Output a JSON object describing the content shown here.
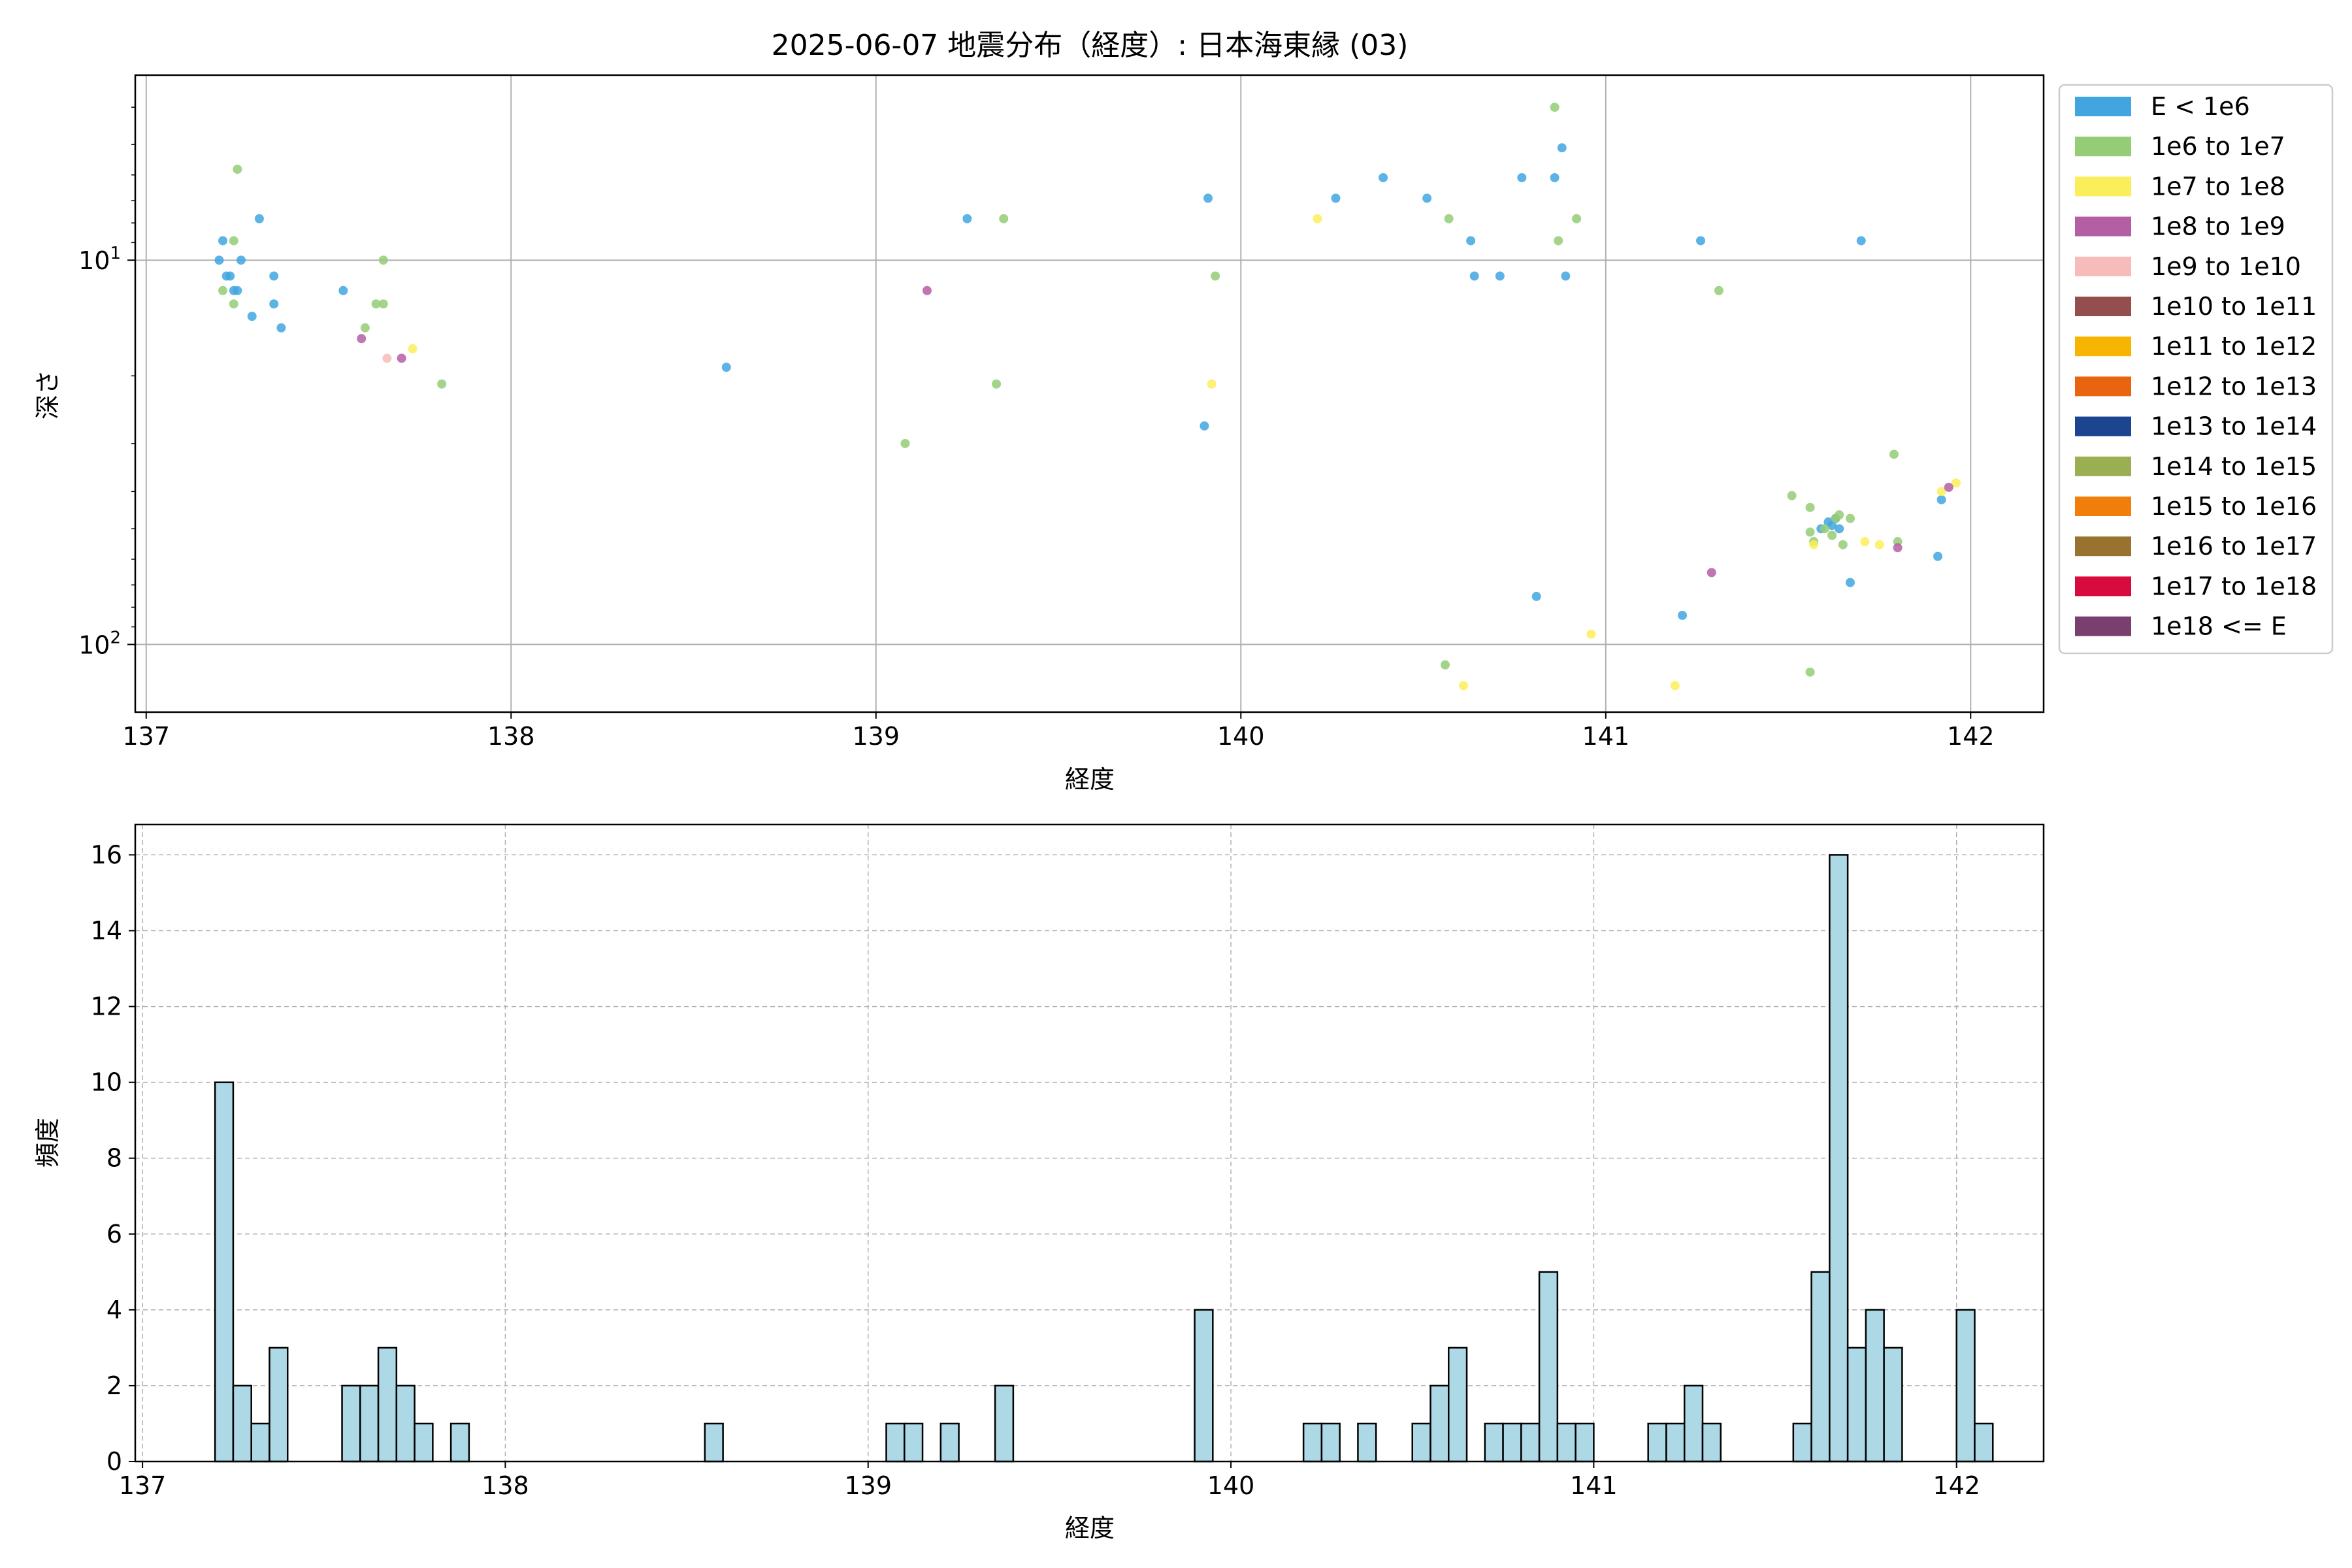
{
  "title": "2025-06-07 地震分布（経度）: 日本海東縁 (03)",
  "chart_data": [
    {
      "type": "scatter",
      "xlabel": "経度",
      "ylabel": "深さ",
      "xlim": [
        136.97,
        142.2
      ],
      "ylim": [
        150,
        3.3
      ],
      "yscale": "log",
      "y_inverted": true,
      "xticks": [
        137,
        138,
        139,
        140,
        141,
        142
      ],
      "yticks": [
        {
          "value": 10,
          "base": "10",
          "exp": "1"
        },
        {
          "value": 100,
          "base": "10",
          "exp": "2"
        }
      ],
      "grid": true,
      "legend_placement": "outside-right",
      "legend": [
        {
          "label": "E < 1e6",
          "color": "#41a6e0"
        },
        {
          "label": "1e6 to 1e7",
          "color": "#94cd76"
        },
        {
          "label": "1e7 to 1e8",
          "color": "#fbee5b"
        },
        {
          "label": "1e8 to 1e9",
          "color": "#b45ea4"
        },
        {
          "label": "1e9 to 1e10",
          "color": "#f6bcb9"
        },
        {
          "label": "1e10 to 1e11",
          "color": "#954e4e"
        },
        {
          "label": "1e11 to 1e12",
          "color": "#f7b500"
        },
        {
          "label": "1e12 to 1e13",
          "color": "#e9640f"
        },
        {
          "label": "1e13 to 1e14",
          "color": "#1c4590"
        },
        {
          "label": "1e14 to 1e15",
          "color": "#9aae52"
        },
        {
          "label": "1e15 to 1e16",
          "color": "#f17d0b"
        },
        {
          "label": "1e16 to 1e17",
          "color": "#9a7230"
        },
        {
          "label": "1e17 to 1e18",
          "color": "#d70b3e"
        },
        {
          "label": "1e18 <= E",
          "color": "#7a3e6f"
        }
      ],
      "points": [
        {
          "x": 137.2,
          "y": 10,
          "c": 0
        },
        {
          "x": 137.21,
          "y": 8.9,
          "c": 0
        },
        {
          "x": 137.22,
          "y": 11,
          "c": 0
        },
        {
          "x": 137.23,
          "y": 11,
          "c": 0
        },
        {
          "x": 137.24,
          "y": 12,
          "c": 0
        },
        {
          "x": 137.25,
          "y": 12,
          "c": 0
        },
        {
          "x": 137.26,
          "y": 10,
          "c": 0
        },
        {
          "x": 137.29,
          "y": 14,
          "c": 0
        },
        {
          "x": 137.31,
          "y": 7.8,
          "c": 0
        },
        {
          "x": 137.35,
          "y": 11,
          "c": 0
        },
        {
          "x": 137.35,
          "y": 13,
          "c": 0
        },
        {
          "x": 137.37,
          "y": 15,
          "c": 0
        },
        {
          "x": 137.54,
          "y": 12,
          "c": 0
        },
        {
          "x": 137.21,
          "y": 12,
          "c": 1
        },
        {
          "x": 137.24,
          "y": 8.9,
          "c": 1
        },
        {
          "x": 137.24,
          "y": 13,
          "c": 1
        },
        {
          "x": 137.25,
          "y": 5.8,
          "c": 1
        },
        {
          "x": 137.6,
          "y": 15,
          "c": 1
        },
        {
          "x": 137.63,
          "y": 13,
          "c": 1
        },
        {
          "x": 137.65,
          "y": 13,
          "c": 1
        },
        {
          "x": 137.65,
          "y": 10,
          "c": 1
        },
        {
          "x": 137.81,
          "y": 21,
          "c": 1
        },
        {
          "x": 137.73,
          "y": 17,
          "c": 2
        },
        {
          "x": 137.59,
          "y": 16,
          "c": 3
        },
        {
          "x": 137.7,
          "y": 18,
          "c": 3
        },
        {
          "x": 137.66,
          "y": 18,
          "c": 4
        },
        {
          "x": 138.59,
          "y": 19,
          "c": 0
        },
        {
          "x": 139.25,
          "y": 7.8,
          "c": 0
        },
        {
          "x": 139.9,
          "y": 27,
          "c": 0
        },
        {
          "x": 139.91,
          "y": 6.9,
          "c": 0
        },
        {
          "x": 139.08,
          "y": 30,
          "c": 1
        },
        {
          "x": 139.33,
          "y": 21,
          "c": 1
        },
        {
          "x": 139.35,
          "y": 7.8,
          "c": 1
        },
        {
          "x": 139.93,
          "y": 11,
          "c": 1
        },
        {
          "x": 139.92,
          "y": 21,
          "c": 2
        },
        {
          "x": 139.14,
          "y": 12,
          "c": 3
        },
        {
          "x": 140.26,
          "y": 6.9,
          "c": 0
        },
        {
          "x": 140.39,
          "y": 6.1,
          "c": 0
        },
        {
          "x": 140.51,
          "y": 6.9,
          "c": 0
        },
        {
          "x": 140.63,
          "y": 8.9,
          "c": 0
        },
        {
          "x": 140.64,
          "y": 11,
          "c": 0
        },
        {
          "x": 140.71,
          "y": 11,
          "c": 0
        },
        {
          "x": 140.77,
          "y": 6.1,
          "c": 0
        },
        {
          "x": 140.81,
          "y": 75,
          "c": 0
        },
        {
          "x": 140.86,
          "y": 6.1,
          "c": 0
        },
        {
          "x": 140.88,
          "y": 5.1,
          "c": 0
        },
        {
          "x": 140.89,
          "y": 11,
          "c": 0
        },
        {
          "x": 140.57,
          "y": 7.8,
          "c": 1
        },
        {
          "x": 140.56,
          "y": 113,
          "c": 1
        },
        {
          "x": 140.86,
          "y": 4.0,
          "c": 1
        },
        {
          "x": 140.87,
          "y": 8.9,
          "c": 1
        },
        {
          "x": 140.92,
          "y": 7.8,
          "c": 1
        },
        {
          "x": 140.21,
          "y": 7.8,
          "c": 2
        },
        {
          "x": 140.61,
          "y": 128,
          "c": 2
        },
        {
          "x": 140.96,
          "y": 94,
          "c": 2
        },
        {
          "x": 141.21,
          "y": 84,
          "c": 0
        },
        {
          "x": 141.26,
          "y": 8.9,
          "c": 0
        },
        {
          "x": 141.31,
          "y": 12,
          "c": 1
        },
        {
          "x": 141.19,
          "y": 128,
          "c": 2
        },
        {
          "x": 141.29,
          "y": 65,
          "c": 3
        },
        {
          "x": 141.59,
          "y": 50,
          "c": 0
        },
        {
          "x": 141.61,
          "y": 48,
          "c": 0
        },
        {
          "x": 141.62,
          "y": 49,
          "c": 0
        },
        {
          "x": 141.63,
          "y": 47,
          "c": 0
        },
        {
          "x": 141.64,
          "y": 50,
          "c": 0
        },
        {
          "x": 141.67,
          "y": 69,
          "c": 0
        },
        {
          "x": 141.7,
          "y": 8.9,
          "c": 0
        },
        {
          "x": 141.91,
          "y": 59,
          "c": 0
        },
        {
          "x": 141.92,
          "y": 42,
          "c": 0
        },
        {
          "x": 141.51,
          "y": 41,
          "c": 1
        },
        {
          "x": 141.56,
          "y": 44,
          "c": 1
        },
        {
          "x": 141.56,
          "y": 51,
          "c": 1
        },
        {
          "x": 141.57,
          "y": 54,
          "c": 1
        },
        {
          "x": 141.56,
          "y": 118,
          "c": 1
        },
        {
          "x": 141.6,
          "y": 50,
          "c": 1
        },
        {
          "x": 141.62,
          "y": 52,
          "c": 1
        },
        {
          "x": 141.63,
          "y": 47,
          "c": 1
        },
        {
          "x": 141.64,
          "y": 46,
          "c": 1
        },
        {
          "x": 141.65,
          "y": 55,
          "c": 1
        },
        {
          "x": 141.67,
          "y": 47,
          "c": 1
        },
        {
          "x": 141.79,
          "y": 32,
          "c": 1
        },
        {
          "x": 141.8,
          "y": 54,
          "c": 1
        },
        {
          "x": 141.57,
          "y": 55,
          "c": 2
        },
        {
          "x": 141.71,
          "y": 54,
          "c": 2
        },
        {
          "x": 141.75,
          "y": 55,
          "c": 2
        },
        {
          "x": 141.92,
          "y": 40,
          "c": 2
        },
        {
          "x": 141.96,
          "y": 38,
          "c": 2
        },
        {
          "x": 141.8,
          "y": 56,
          "c": 3
        },
        {
          "x": 141.94,
          "y": 39,
          "c": 3
        }
      ]
    },
    {
      "type": "bar",
      "xlabel": "経度",
      "ylabel": "頻度",
      "xlim": [
        136.98,
        142.24
      ],
      "ylim": [
        0,
        16.8
      ],
      "xticks": [
        137,
        138,
        139,
        140,
        141,
        142
      ],
      "yticks": [
        0,
        2,
        4,
        6,
        8,
        10,
        12,
        14,
        16
      ],
      "grid": true,
      "bar_color": "#add8e6",
      "bin_start": 137.2,
      "bin_width": 0.05,
      "counts": [
        10,
        2,
        1,
        3,
        0,
        0,
        0,
        2,
        2,
        3,
        2,
        1,
        0,
        1,
        0,
        0,
        0,
        0,
        0,
        0,
        0,
        0,
        0,
        0,
        0,
        0,
        0,
        1,
        0,
        0,
        0,
        0,
        0,
        0,
        0,
        0,
        0,
        1,
        1,
        0,
        1,
        0,
        0,
        2,
        0,
        0,
        0,
        0,
        0,
        0,
        0,
        0,
        0,
        0,
        4,
        0,
        0,
        0,
        0,
        0,
        1,
        1,
        0,
        1,
        0,
        0,
        1,
        2,
        3,
        0,
        1,
        1,
        1,
        5,
        1,
        1,
        0,
        0,
        0,
        1,
        1,
        2,
        1,
        0,
        0,
        0,
        0,
        1,
        5,
        16,
        3,
        4,
        3,
        0,
        0,
        0,
        4,
        1
      ]
    }
  ]
}
